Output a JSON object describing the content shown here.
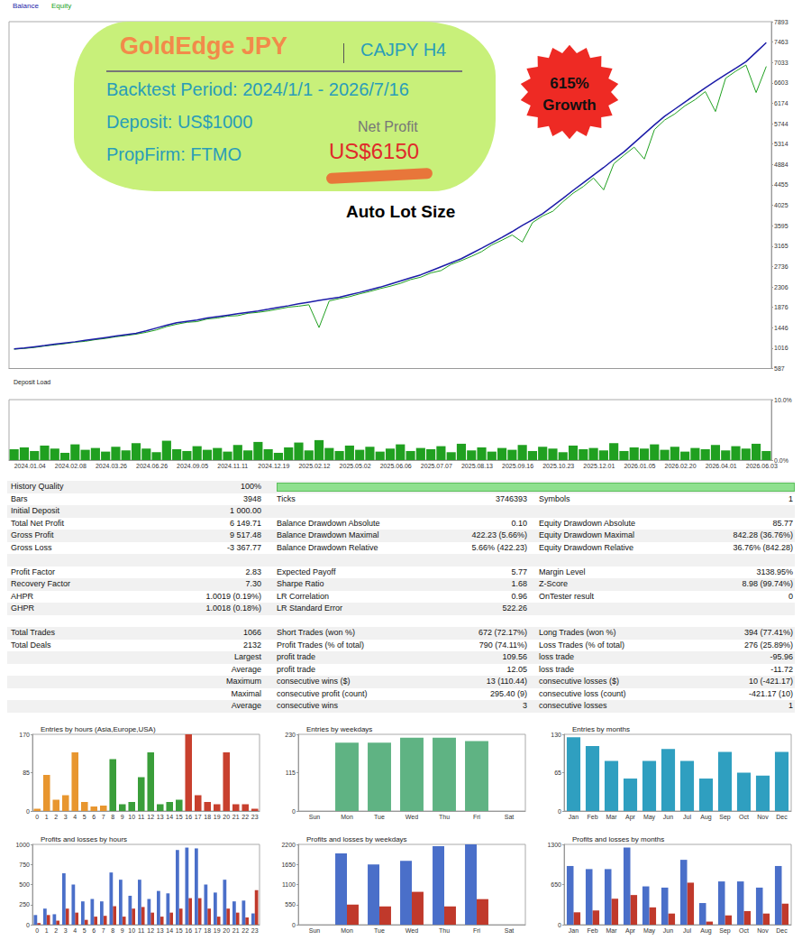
{
  "annotations": {
    "title": "GoldEdge JPY",
    "symbol": "CAJPY H4",
    "lines": [
      "Backtest Period: 2024/1/1 - 2026/7/16",
      "Deposit: US$1000",
      "PropFirm: FTMO"
    ],
    "net_profit_label": "Net Profit",
    "net_profit": "US$6150",
    "badge": [
      "615%",
      "Growth"
    ],
    "note": "Auto Lot Size"
  },
  "chart_data": [
    {
      "type": "line",
      "legend": "upper left",
      "tick_labels": "y",
      "grid": false,
      "x": [
        "2024.01.04",
        null,
        null,
        null,
        "2024.02.08",
        null,
        null,
        null,
        "2024.03.26",
        null,
        null,
        null,
        "2024.06.26",
        null,
        null,
        null,
        "2024.09.05",
        null,
        null,
        null,
        "2024.11.11",
        null,
        null,
        null,
        "2024.12.19",
        null,
        null,
        null,
        "2025.02.12",
        null,
        null,
        null,
        "2025.05.02",
        null,
        null,
        null,
        "2025.06.06",
        null,
        null,
        null,
        "2025.07.07",
        null,
        null,
        null,
        "2025.08.13",
        null,
        null,
        null,
        "2025.09.16",
        null,
        null,
        null,
        "2025.10.23",
        null,
        null,
        null,
        "2025.12.01",
        null,
        null,
        null,
        "2026.01.05",
        null,
        null,
        null,
        "2026.02.20",
        null,
        null,
        null,
        "2026.04.01",
        null,
        null,
        null,
        "2026.06.03",
        null,
        null
      ],
      "ylim": [
        587,
        7893
      ],
      "yticks": [
        587,
        1016,
        1446,
        1876,
        2306,
        2736,
        3165,
        3595,
        4025,
        4455,
        4884,
        5314,
        5744,
        6174,
        6603,
        7033,
        7463,
        7893
      ],
      "series": [
        {
          "name": "Balance",
          "color": "#1c1ca8",
          "values": [
            1000,
            1020,
            1045,
            1070,
            1100,
            1125,
            1150,
            1180,
            1210,
            1240,
            1270,
            1300,
            1330,
            1380,
            1440,
            1500,
            1550,
            1580,
            1610,
            1650,
            1680,
            1710,
            1740,
            1770,
            1800,
            1835,
            1875,
            1910,
            1950,
            1985,
            2020,
            2055,
            2090,
            2140,
            2190,
            2245,
            2300,
            2365,
            2430,
            2495,
            2560,
            2645,
            2730,
            2815,
            2900,
            3010,
            3120,
            3235,
            3350,
            3470,
            3600,
            3720,
            3850,
            4010,
            4170,
            4340,
            4500,
            4660,
            4820,
            4990,
            5150,
            5340,
            5530,
            5720,
            5900,
            6050,
            6200,
            6350,
            6500,
            6640,
            6780,
            6910,
            7050,
            7250,
            7450
          ]
        },
        {
          "name": "Equity",
          "color": "#20a020",
          "values": [
            995,
            1010,
            1030,
            1060,
            1085,
            1110,
            1140,
            1160,
            1195,
            1220,
            1255,
            1280,
            1310,
            1350,
            1400,
            1470,
            1520,
            1560,
            1575,
            1630,
            1650,
            1690,
            1700,
            1750,
            1770,
            1800,
            1840,
            1880,
            1900,
            1930,
            1450,
            2010,
            2060,
            2100,
            2160,
            2210,
            2270,
            2320,
            2380,
            2460,
            2510,
            2600,
            2650,
            2780,
            2860,
            2950,
            3050,
            3190,
            3290,
            3400,
            3250,
            3660,
            3800,
            3900,
            4100,
            4280,
            4420,
            4600,
            4350,
            4900,
            5080,
            5250,
            5000,
            5620,
            5820,
            5950,
            6120,
            6250,
            6420,
            6000,
            6700,
            6850,
            6980,
            6400,
            6950
          ]
        }
      ]
    },
    {
      "type": "bar",
      "title": "Deposit Load",
      "grid": false,
      "color": "#20a020",
      "x": [
        "2024.01.04",
        null,
        null,
        null,
        "2024.02.08",
        null,
        null,
        null,
        "2024.03.26",
        null,
        null,
        null,
        "2024.06.26",
        null,
        null,
        null,
        "2024.09.05",
        null,
        null,
        null,
        "2024.11.11",
        null,
        null,
        null,
        "2024.12.19",
        null,
        null,
        null,
        "2025.02.12",
        null,
        null,
        null,
        "2025.05.02",
        null,
        null,
        null,
        "2025.06.06",
        null,
        null,
        null,
        "2025.07.07",
        null,
        null,
        null,
        "2025.08.13",
        null,
        null,
        null,
        "2025.09.16",
        null,
        null,
        null,
        "2025.10.23",
        null,
        null,
        null,
        "2025.12.01",
        null,
        null,
        null,
        "2026.01.05",
        null,
        null,
        null,
        "2026.02.20",
        null,
        null,
        null,
        "2026.04.01",
        null,
        null,
        null,
        "2026.06.03",
        null,
        null
      ],
      "ylim": [
        0,
        10
      ],
      "yticks": [
        {
          "value": 0,
          "label": "0.0%"
        },
        {
          "value": 10,
          "label": "10.0%"
        }
      ],
      "values": [
        1.8,
        2.1,
        1.5,
        2.4,
        1.9,
        1.2,
        2.6,
        1.7,
        2.0,
        1.4,
        2.2,
        1.6,
        2.8,
        1.9,
        1.3,
        3.2,
        1.8,
        1.5,
        2.3,
        1.7,
        2.0,
        1.4,
        2.5,
        1.6,
        3.0,
        1.8,
        1.2,
        2.1,
        2.9,
        1.6,
        3.3,
        2.0,
        1.5,
        2.4,
        1.7,
        2.2,
        1.4,
        1.9,
        2.6,
        1.5,
        2.0,
        1.8,
        2.3,
        1.3,
        2.7,
        1.6,
        2.1,
        1.4,
        2.0,
        1.7,
        2.5,
        1.5,
        2.2,
        1.9,
        1.3,
        2.4,
        1.8,
        2.0,
        1.6,
        2.8,
        1.5,
        2.1,
        1.9,
        2.6,
        1.7,
        2.2,
        1.4,
        2.0,
        1.8,
        2.5,
        1.6,
        2.3,
        1.9,
        2.7,
        1.5
      ]
    },
    {
      "type": "bar",
      "title": "Entries by hours (Asia,Europe,USA)",
      "grid": false,
      "categories": [
        "0",
        "1",
        "2",
        "3",
        "4",
        "5",
        "6",
        "7",
        "8",
        "9",
        "10",
        "11",
        "12",
        "13",
        "14",
        "15",
        "16",
        "17",
        "18",
        "19",
        "20",
        "21",
        "22",
        "23"
      ],
      "values": [
        5,
        80,
        25,
        35,
        130,
        20,
        10,
        12,
        115,
        15,
        20,
        75,
        130,
        15,
        20,
        25,
        170,
        35,
        20,
        15,
        130,
        15,
        15,
        5
      ],
      "colors": [
        "#e8962f",
        "#e8962f",
        "#e8962f",
        "#e8962f",
        "#e8962f",
        "#e8962f",
        "#e8962f",
        "#e8962f",
        "#3a9e3a",
        "#3a9e3a",
        "#3a9e3a",
        "#3a9e3a",
        "#3a9e3a",
        "#3a9e3a",
        "#3a9e3a",
        "#3a9e3a",
        "#c8402e",
        "#c8402e",
        "#c8402e",
        "#c8402e",
        "#c8402e",
        "#c8402e",
        "#c8402e",
        "#c8402e"
      ],
      "ylim": [
        0,
        170
      ],
      "yticks": [
        0,
        85,
        170
      ]
    },
    {
      "type": "bar",
      "title": "Entries by weekdays",
      "grid": false,
      "categories": [
        "Sun",
        "Mon",
        "Tue",
        "Wed",
        "Thu",
        "Fri",
        "Sat"
      ],
      "values": [
        0,
        205,
        205,
        220,
        220,
        210,
        0
      ],
      "color": "#5fb383",
      "ylim": [
        0,
        230
      ],
      "yticks": [
        0,
        115,
        230
      ]
    },
    {
      "type": "bar",
      "title": "Entries by months",
      "grid": false,
      "categories": [
        "Jan",
        "Feb",
        "Mar",
        "Apr",
        "May",
        "Jun",
        "Jul",
        "Aug",
        "Sep",
        "Oct",
        "Nov",
        "Dec"
      ],
      "values": [
        125,
        110,
        85,
        55,
        85,
        105,
        85,
        55,
        100,
        65,
        60,
        100
      ],
      "color": "#2f9fc0",
      "ylim": [
        0,
        130
      ],
      "yticks": [
        0,
        65,
        130
      ]
    },
    {
      "type": "bar",
      "title": "Profits and losses by hours",
      "grid": false,
      "categories": [
        "0",
        "1",
        "2",
        "3",
        "4",
        "5",
        "6",
        "7",
        "8",
        "9",
        "10",
        "11",
        "12",
        "13",
        "14",
        "15",
        "16",
        "17",
        "18",
        "19",
        "20",
        "21",
        "22",
        "23"
      ],
      "series": [
        {
          "color": "#4a6fc9",
          "values": [
            120,
            200,
            130,
            640,
            500,
            290,
            320,
            290,
            650,
            560,
            360,
            560,
            320,
            420,
            390,
            930,
            960,
            950,
            500,
            400,
            560,
            290,
            300,
            140
          ]
        },
        {
          "color": "#c0392b",
          "values": [
            20,
            120,
            50,
            200,
            150,
            60,
            100,
            110,
            230,
            100,
            200,
            220,
            150,
            100,
            150,
            200,
            330,
            330,
            200,
            100,
            200,
            150,
            90,
            430
          ]
        }
      ],
      "ylim": [
        0,
        1000
      ],
      "yticks": [
        0,
        250,
        500,
        750,
        1000
      ]
    },
    {
      "type": "bar",
      "title": "Profits and losses by weekdays",
      "grid": false,
      "categories": [
        "Sun",
        "Mon",
        "Tue",
        "Wed",
        "Thu",
        "Fri",
        "Sat"
      ],
      "series": [
        {
          "color": "#4a6fc9",
          "values": [
            0,
            1950,
            1650,
            1750,
            2150,
            2200,
            0
          ]
        },
        {
          "color": "#c0392b",
          "values": [
            0,
            550,
            500,
            900,
            500,
            700,
            0
          ]
        }
      ],
      "ylim": [
        0,
        2200
      ],
      "yticks": [
        0,
        550,
        1100,
        1650,
        2200
      ]
    },
    {
      "type": "bar",
      "title": "Profits and losses by months",
      "grid": false,
      "categories": [
        "Jan",
        "Feb",
        "Mar",
        "Apr",
        "May",
        "Jun",
        "Jul",
        "Aug",
        "Sep",
        "Oct",
        "Nov",
        "Dec"
      ],
      "series": [
        {
          "color": "#4a6fc9",
          "values": [
            950,
            900,
            900,
            1250,
            620,
            600,
            1050,
            350,
            700,
            700,
            600,
            950
          ]
        },
        {
          "color": "#c0392b",
          "values": [
            200,
            230,
            420,
            480,
            280,
            180,
            680,
            50,
            150,
            220,
            180,
            340
          ]
        }
      ],
      "ylim": [
        0,
        1300
      ],
      "yticks": [
        0,
        650,
        1300
      ]
    }
  ],
  "report": {
    "history_quality": {
      "label": "History Quality",
      "value": 100,
      "value_label": "100%"
    },
    "sections": [
      [
        [
          "Bars",
          "3948",
          "Ticks",
          "3746393",
          "Symbols",
          "1"
        ],
        [
          "Initial Deposit",
          "1 000.00",
          null,
          null,
          null,
          null
        ],
        [
          "Total Net Profit",
          "6 149.71",
          "Balance Drawdown Absolute",
          "0.10",
          "Equity Drawdown Absolute",
          "85.77"
        ],
        [
          "Gross Profit",
          "9 517.48",
          "Balance Drawdown Maximal",
          "422.23 (5.66%)",
          "Equity Drawdown Maximal",
          "842.28 (36.76%)"
        ],
        [
          "Gross Loss",
          "-3 367.77",
          "Balance Drawdown Relative",
          "5.66% (422.23)",
          "Equity Drawdown Relative",
          "36.76% (842.28)"
        ]
      ],
      [
        [
          "Profit Factor",
          "2.83",
          "Expected Payoff",
          "5.77",
          "Margin Level",
          "3138.95%"
        ],
        [
          "Recovery Factor",
          "7.30",
          "Sharpe Ratio",
          "1.68",
          "Z-Score",
          "8.98 (99.74%)"
        ],
        [
          "AHPR",
          "1.0019 (0.19%)",
          "LR Correlation",
          "0.96",
          "OnTester result",
          "0"
        ],
        [
          "GHPR",
          "1.0018 (0.18%)",
          "LR Standard Error",
          "522.26",
          null,
          null
        ]
      ],
      [
        [
          "Total Trades",
          "1066",
          "Short Trades (won %)",
          "672 (72.17%)",
          "Long Trades (won %)",
          "394 (77.41%)"
        ],
        [
          "Total Deals",
          "2132",
          "Profit Trades (% of total)",
          "790 (74.11%)",
          "Loss Trades (% of total)",
          "276 (25.89%)"
        ],
        [
          null,
          "Largest",
          "profit trade",
          "109.56",
          "loss trade",
          "-95.96"
        ],
        [
          null,
          "Average",
          "profit trade",
          "12.05",
          "loss trade",
          "-11.72"
        ],
        [
          null,
          "Maximum",
          "consecutive wins ($)",
          "13 (110.44)",
          "consecutive losses ($)",
          "10 (-421.17)"
        ],
        [
          null,
          "Maximal",
          "consecutive profit (count)",
          "295.40 (9)",
          "consecutive loss (count)",
          "-421.17 (10)"
        ],
        [
          null,
          "Average",
          "consecutive wins",
          "3",
          "consecutive losses",
          "1"
        ]
      ]
    ]
  }
}
